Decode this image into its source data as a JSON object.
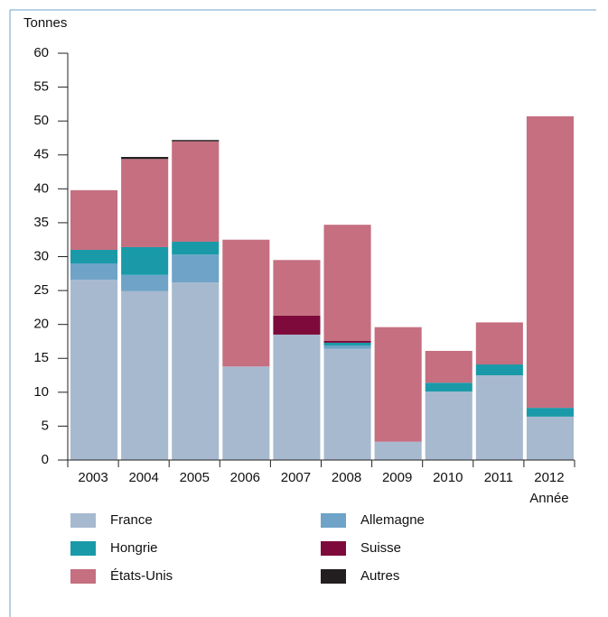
{
  "chart_data": {
    "type": "stacked_bar",
    "y_label": "Tonnes",
    "x_label": "Année",
    "categories": [
      "2003",
      "2004",
      "2005",
      "2006",
      "2007",
      "2008",
      "2009",
      "2010",
      "2011",
      "2012"
    ],
    "series": [
      {
        "name": "France",
        "color": "#a7b9cf",
        "values": [
          26.6,
          24.9,
          26.2,
          13.8,
          18.5,
          16.4,
          2.7,
          10.1,
          12.5,
          6.4
        ]
      },
      {
        "name": "Allemagne",
        "color": "#6fa3c8",
        "values": [
          2.4,
          2.4,
          4.1,
          null,
          null,
          0.5,
          null,
          null,
          null,
          null
        ]
      },
      {
        "name": "Hongrie",
        "color": "#1a9aa8",
        "values": [
          2.0,
          4.1,
          1.9,
          null,
          null,
          0.4,
          null,
          1.3,
          1.6,
          1.3
        ]
      },
      {
        "name": "Suisse",
        "color": "#7d0a3a",
        "values": [
          null,
          null,
          null,
          null,
          2.8,
          0.3,
          null,
          null,
          null,
          null
        ]
      },
      {
        "name": "États-Unis",
        "color": "#c56f80",
        "values": [
          8.8,
          13.0,
          14.8,
          18.7,
          8.2,
          17.1,
          16.9,
          4.7,
          6.2,
          43.0
        ]
      },
      {
        "name": "Autres",
        "color": "#231f20",
        "values": [
          null,
          0.3,
          0.2,
          null,
          null,
          null,
          null,
          null,
          null,
          null
        ]
      }
    ],
    "ylim": [
      0,
      60
    ],
    "yticks": [
      0,
      5,
      10,
      15,
      20,
      25,
      30,
      35,
      40,
      45,
      50,
      55,
      60
    ]
  }
}
